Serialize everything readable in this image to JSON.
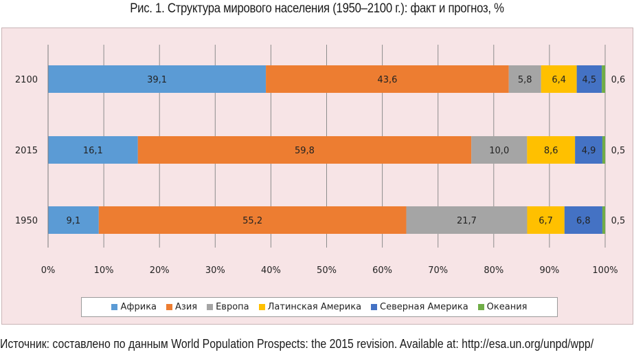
{
  "title": "Рис. 1. Структура мирового населения (1950–2100 г.): факт и прогноз, %",
  "source": "Источник: составлено по данным World Population Prospects: the 2015 revision. Available at: http://esa.un.org/unpd/wpp/",
  "chart_data": {
    "type": "bar",
    "orientation": "horizontal",
    "stacked": "percent",
    "title": "Рис. 1. Структура мирового населения (1950–2100 г.): факт и прогноз, %",
    "categories": [
      "2100",
      "2015",
      "1950"
    ],
    "series": [
      {
        "name": "Африка",
        "color": "#5b9bd5",
        "values": [
          39.1,
          16.1,
          9.1
        ],
        "labels": [
          "39,1",
          "16,1",
          "9,1"
        ]
      },
      {
        "name": "Азия",
        "color": "#ed7d31",
        "values": [
          43.6,
          59.8,
          55.2
        ],
        "labels": [
          "43,6",
          "59,8",
          "55,2"
        ]
      },
      {
        "name": "Европа",
        "color": "#a5a5a5",
        "values": [
          5.8,
          10.0,
          21.7
        ],
        "labels": [
          "5,8",
          "10,0",
          "21,7"
        ]
      },
      {
        "name": "Латинская Америка",
        "color": "#ffc000",
        "values": [
          6.4,
          8.6,
          6.7
        ],
        "labels": [
          "6,4",
          "8,6",
          "6,7"
        ]
      },
      {
        "name": "Северная Америка",
        "color": "#4472c4",
        "values": [
          4.5,
          4.9,
          6.8
        ],
        "labels": [
          "4,5",
          "4,9",
          "6,8"
        ]
      },
      {
        "name": "Океания",
        "color": "#70ad47",
        "values": [
          0.6,
          0.5,
          0.5
        ],
        "labels": [
          "0,6",
          "0,5",
          "0,5"
        ]
      }
    ],
    "xlim": [
      0,
      100
    ],
    "xticks": [
      "0%",
      "10%",
      "20%",
      "30%",
      "40%",
      "50%",
      "60%",
      "70%",
      "80%",
      "90%",
      "100%"
    ],
    "xlabel": "",
    "ylabel": "",
    "legend": "bottom",
    "grid": true
  }
}
